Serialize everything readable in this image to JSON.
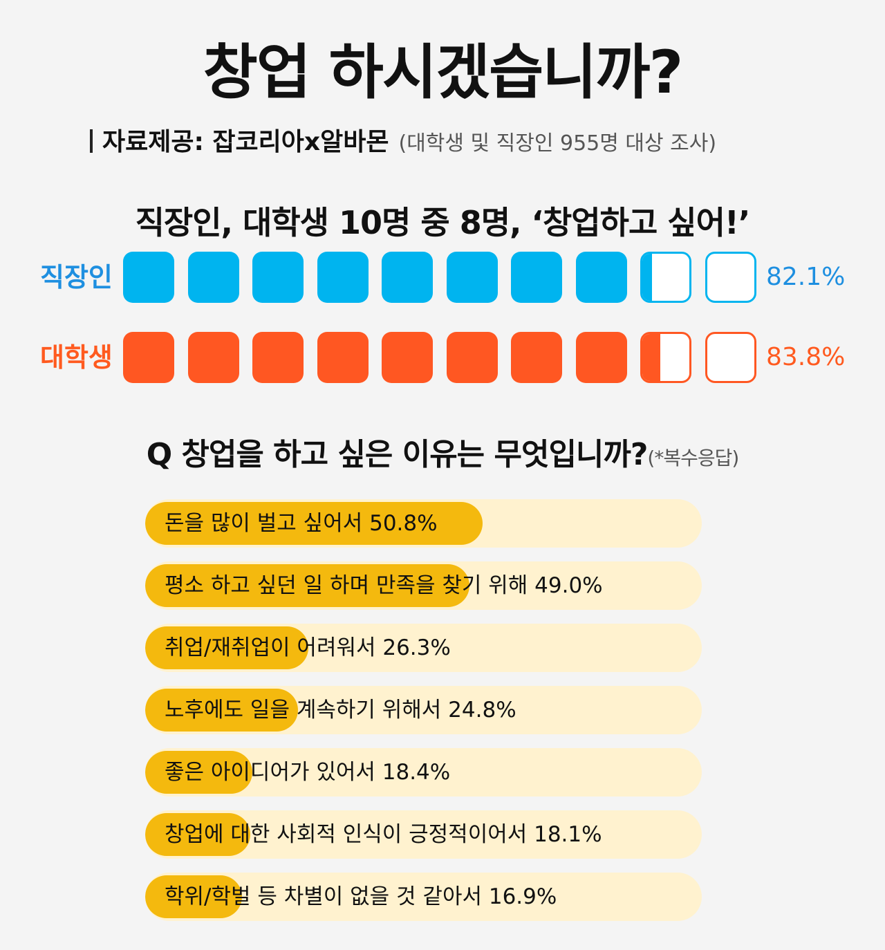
{
  "header": {
    "title": "창업 하시겠습니까?",
    "source": "자료제공: 잡코리아x알바몬",
    "source_note": "(대학생 및 직장인 955명 대상 조사)"
  },
  "section1": {
    "headline": "직장인, 대학생 10명 중 8명, ‘창업하고 싶어!’"
  },
  "section2": {
    "question": "Q 창업을 하고 싶은 이유는 무엇입니까?",
    "question_note": "(*복수응답)"
  },
  "colors": {
    "office": "#00b4ef",
    "office_text": "#1e8fe0",
    "student": "#ff5722",
    "student_text": "#ff5a1f",
    "reason_fill": "#f4b90e",
    "reason_track": "#fff2cf"
  },
  "chart_data": [
    {
      "type": "bar",
      "title": "직장인, 대학생 10명 중 8명, ‘창업하고 싶어!’",
      "categories": [
        "직장인",
        "대학생"
      ],
      "values": [
        82.1,
        83.8
      ],
      "value_labels": [
        "82.1%",
        "83.8%"
      ],
      "units_per_box": 10,
      "box_count": 10,
      "ylim": [
        0,
        100
      ]
    },
    {
      "type": "bar",
      "title": "Q 창업을 하고 싶은 이유는 무엇입니까?",
      "categories": [
        "돈을 많이 벌고 싶어서 50.8%",
        "평소 하고 싶던 일 하며 만족을 찾기 위해 49.0%",
        "취업/재취업이 어려워서 26.3%",
        "노후에도 일을 계속하기 위해서 24.8%",
        "좋은 아이디어가 있어서 18.4%",
        "창업에 대한 사회적 인식이 긍정적이어서 18.1%",
        "학위/학벌 등 차별이 없을 것 같아서 16.9%"
      ],
      "values": [
        50.8,
        49.0,
        26.3,
        24.8,
        18.4,
        18.1,
        16.9
      ],
      "ylim": [
        0,
        100
      ]
    }
  ]
}
